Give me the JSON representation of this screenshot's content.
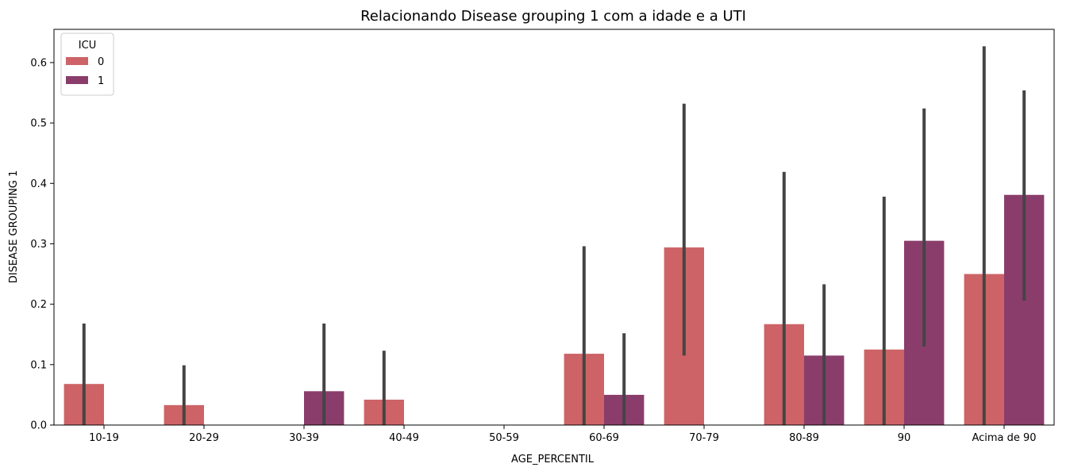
{
  "chart_data": {
    "type": "bar",
    "title": "Relacionando Disease grouping 1 com a idade e a UTI",
    "xlabel": "AGE_PERCENTIL",
    "ylabel": "DISEASE GROUPING 1",
    "ylim": [
      0,
      0.655
    ],
    "yticks": [
      "0.0",
      "0.1",
      "0.2",
      "0.3",
      "0.4",
      "0.5",
      "0.6"
    ],
    "grid": false,
    "legend": {
      "title": "ICU",
      "placement": "top-left"
    },
    "categories": [
      "10-19",
      "20-29",
      "30-39",
      "40-49",
      "50-59",
      "60-69",
      "70-79",
      "80-89",
      "90",
      "Acima de 90"
    ],
    "series": [
      {
        "name": "0",
        "color": "#cd6366",
        "values": [
          0.068,
          0.033,
          0.0,
          0.042,
          0.0,
          0.118,
          0.294,
          0.167,
          0.125,
          0.25
        ],
        "ci_low": [
          0.0,
          0.0,
          0.0,
          0.0,
          0.0,
          0.0,
          0.115,
          0.0,
          0.0,
          0.0
        ],
        "ci_high": [
          0.168,
          0.099,
          0.0,
          0.123,
          0.0,
          0.296,
          0.532,
          0.419,
          0.378,
          0.627
        ]
      },
      {
        "name": "1",
        "color": "#8a3d6b",
        "values": [
          0.0,
          0.0,
          0.056,
          0.0,
          0.0,
          0.05,
          0.0,
          0.115,
          0.305,
          0.381
        ],
        "ci_low": [
          0.0,
          0.0,
          0.0,
          0.0,
          0.0,
          0.0,
          0.0,
          0.0,
          0.13,
          0.206
        ],
        "ci_high": [
          0.0,
          0.0,
          0.168,
          0.0,
          0.0,
          0.152,
          0.0,
          0.233,
          0.524,
          0.554
        ]
      }
    ],
    "errorbar_color": "#444444"
  }
}
